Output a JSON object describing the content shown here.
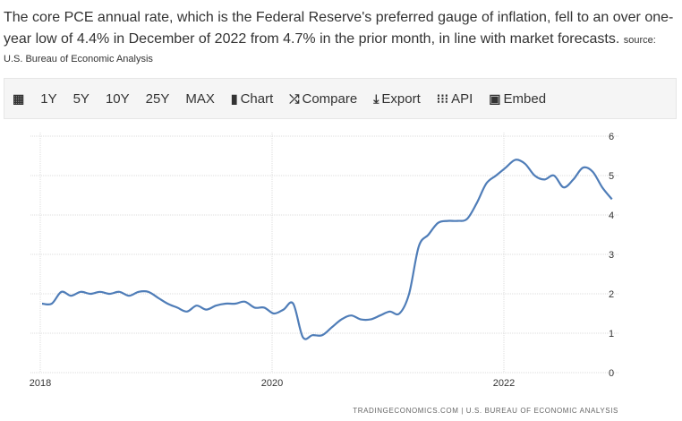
{
  "description": "The core PCE annual rate, which is the Federal Reserve's preferred gauge of inflation, fell to an over one-year low of 4.4% in December of 2022 from 4.7% in the prior month, in line with market forecasts.",
  "source_label": "source:",
  "source_name": "U.S. Bureau of Economic Analysis",
  "toolbar": {
    "items": [
      {
        "label": "",
        "icon": "calendar-icon"
      },
      {
        "label": "1Y"
      },
      {
        "label": "5Y"
      },
      {
        "label": "10Y"
      },
      {
        "label": "25Y"
      },
      {
        "label": "MAX"
      },
      {
        "label": "Chart",
        "icon": "bar-chart-icon"
      },
      {
        "label": "Compare",
        "icon": "shuffle-icon"
      },
      {
        "label": "Export",
        "icon": "download-icon"
      },
      {
        "label": "API",
        "icon": "grid-icon"
      },
      {
        "label": "Embed",
        "icon": "image-icon"
      }
    ]
  },
  "chart_data": {
    "type": "line",
    "x_start": "2018-01",
    "frequency": "monthly",
    "x_tick_labels": [
      "2018",
      "2020",
      "2022"
    ],
    "y_tick_labels": [
      "0",
      "1",
      "2",
      "3",
      "4",
      "5",
      "6"
    ],
    "ylim": [
      0,
      6
    ],
    "grid": true,
    "y_axis_side": "right",
    "line_color": "#4f7db8",
    "values": [
      1.75,
      1.75,
      2.05,
      1.95,
      2.05,
      2.0,
      2.05,
      2.0,
      2.05,
      1.95,
      2.05,
      2.05,
      1.9,
      1.75,
      1.65,
      1.55,
      1.7,
      1.6,
      1.7,
      1.75,
      1.75,
      1.8,
      1.65,
      1.65,
      1.5,
      1.6,
      1.75,
      0.9,
      0.95,
      0.95,
      1.15,
      1.35,
      1.45,
      1.35,
      1.35,
      1.45,
      1.55,
      1.5,
      2.0,
      3.2,
      3.5,
      3.8,
      3.85,
      3.85,
      3.9,
      4.3,
      4.8,
      5.0,
      5.2,
      5.4,
      5.3,
      5.0,
      4.9,
      5.0,
      4.7,
      4.9,
      5.2,
      5.1,
      4.7,
      4.4
    ],
    "watermark": "TRADINGECONOMICS.COM | U.S. BUREAU OF ECONOMIC ANALYSIS"
  }
}
